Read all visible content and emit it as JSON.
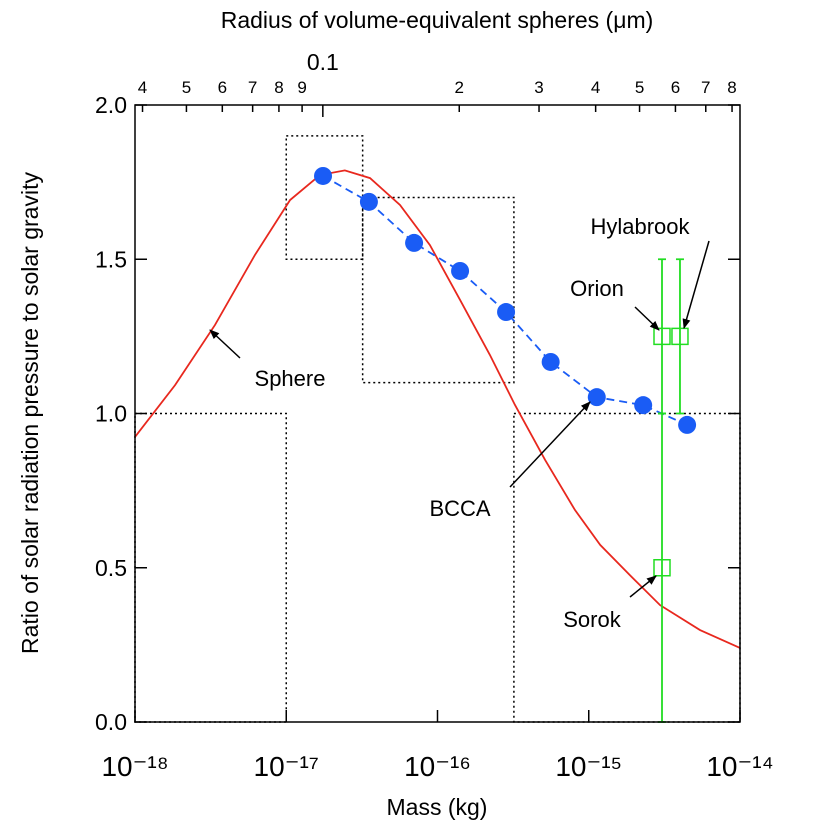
{
  "chart_data": {
    "type": "line",
    "title": "Radius of volume-equivalent spheres (μm)",
    "x_label": "Mass (kg)",
    "y_label": "Ratio of solar radiation pressure to solar gravity",
    "xscale": "log",
    "xlim": [
      1e-18,
      1e-14
    ],
    "xticks": [
      {
        "value": 1e-18,
        "label": "10⁻¹⁸"
      },
      {
        "value": 1e-17,
        "label": "10⁻¹⁷"
      },
      {
        "value": 1e-16,
        "label": "10⁻¹⁶"
      },
      {
        "value": 1e-15,
        "label": "10⁻¹⁵"
      },
      {
        "value": 1e-14,
        "label": "10⁻¹⁴"
      }
    ],
    "x2scale": "log",
    "x2lim": [
      0.0385,
      0.833
    ],
    "x2ticks": [
      {
        "value": 0.04,
        "label": "4"
      },
      {
        "value": 0.05,
        "label": "5"
      },
      {
        "value": 0.06,
        "label": "6"
      },
      {
        "value": 0.07,
        "label": "7"
      },
      {
        "value": 0.08,
        "label": "8"
      },
      {
        "value": 0.09,
        "label": "9"
      },
      0.1,
      {
        "value": 0.2,
        "label": "2"
      },
      {
        "value": 0.3,
        "label": "3"
      },
      {
        "value": 0.4,
        "label": "4"
      },
      {
        "value": 0.5,
        "label": "5"
      },
      {
        "value": 0.6,
        "label": "6"
      },
      {
        "value": 0.7,
        "label": "7"
      },
      {
        "value": 0.8,
        "label": "8"
      }
    ],
    "ylim": [
      0,
      2
    ],
    "yticks": [
      {
        "value": 0,
        "label": "0.0"
      },
      {
        "value": 0.5,
        "label": "0.5"
      },
      {
        "value": 1,
        "label": "1.0"
      },
      {
        "value": 1.5,
        "label": "1.5"
      },
      {
        "value": 2,
        "label": "2.0"
      }
    ],
    "grid": false,
    "regions": [
      {
        "x": [
          1e-18,
          1e-17
        ],
        "y": [
          0,
          1.0
        ]
      },
      {
        "x": [
          1e-17,
          3.2e-17
        ],
        "y": [
          1.5,
          1.9
        ]
      },
      {
        "x": [
          3.2e-17,
          3.2e-16
        ],
        "y": [
          1.1,
          1.7
        ]
      },
      {
        "x": [
          3.2e-16,
          1e-14
        ],
        "y": [
          0,
          1.0
        ]
      }
    ],
    "series": [
      {
        "name": "Sphere",
        "color": "#e8281e",
        "style": "solid",
        "x": [
          1e-18,
          1.84e-18,
          3.38e-18,
          6.21e-18,
          1.06e-17,
          1.67e-17,
          2.44e-17,
          3.58e-17,
          5.65e-17,
          8.91e-17,
          1.41e-16,
          2.22e-16,
          3.25e-16,
          5.14e-16,
          8.11e-16,
          1.19e-15,
          1.87e-15,
          2.96e-15,
          5.44e-15,
          1e-14
        ],
        "values": [
          0.924,
          1.092,
          1.287,
          1.514,
          1.692,
          1.773,
          1.788,
          1.763,
          1.676,
          1.546,
          1.368,
          1.19,
          1.028,
          0.85,
          0.687,
          0.574,
          0.476,
          0.379,
          0.298,
          0.24
        ]
      },
      {
        "name": "BCCA",
        "color": "#1a5cf5",
        "style": "dashed-dots",
        "x": [
          1.75e-17,
          3.52e-17,
          7e-17,
          1.41e-16,
          2.84e-16,
          5.6e-16,
          1.13e-15,
          2.29e-15,
          4.47e-15
        ],
        "values": [
          1.77,
          1.686,
          1.553,
          1.462,
          1.329,
          1.167,
          1.053,
          1.027,
          0.963
        ]
      },
      {
        "name": "Orion",
        "color": "#22dd22",
        "style": "error-squares",
        "x": [
          3.05e-15
        ],
        "values": [
          1.25
        ],
        "errors": [
          0.25
        ]
      },
      {
        "name": "Hylabrook",
        "color": "#22dd22",
        "style": "error-squares",
        "x": [
          4.01e-15
        ],
        "values": [
          1.25
        ],
        "errors": [
          0.25
        ]
      },
      {
        "name": "Sorok",
        "color": "#22dd22",
        "style": "error-squares",
        "x": [
          3.05e-15
        ],
        "values": [
          0.5
        ],
        "errors": [
          0.5
        ]
      }
    ]
  }
}
